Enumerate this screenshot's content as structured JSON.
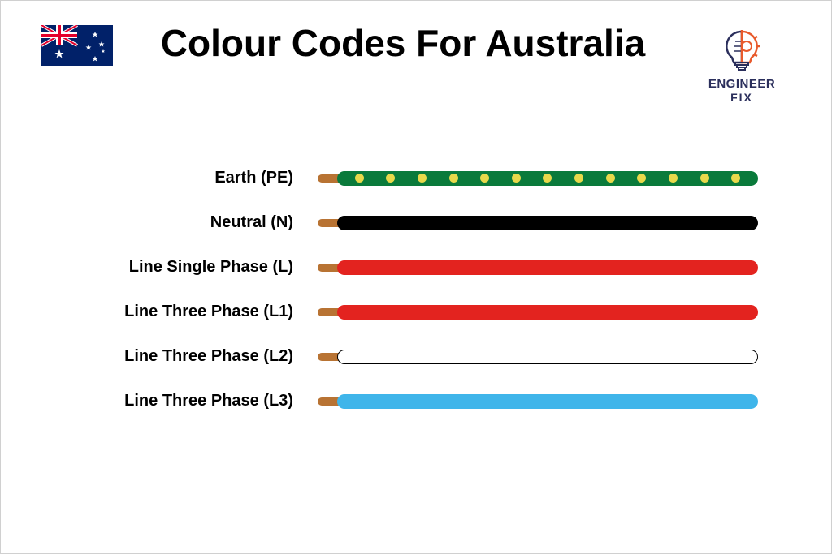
{
  "title": "Colour Codes For Australia",
  "logo": {
    "line1": "ENGINEER",
    "line2": "FIX",
    "color": "#2b2f5c",
    "accent": "#e85a2c"
  },
  "flag": {
    "bg": "#012169",
    "red": "#e4002b",
    "white": "#ffffff"
  },
  "copper_color": "#b87333",
  "wire_height": 18,
  "border_color": "#000000",
  "wires": [
    {
      "label": "Earth (PE)",
      "fill": "#0a7a3b",
      "border": false,
      "dots": true,
      "dot_color": "#e8d94b",
      "dot_count": 13
    },
    {
      "label": "Neutral (N)",
      "fill": "#000000",
      "border": false,
      "dots": false
    },
    {
      "label": "Line Single Phase (L)",
      "fill": "#e3231f",
      "border": false,
      "dots": false
    },
    {
      "label": "Line Three Phase (L1)",
      "fill": "#e3231f",
      "border": false,
      "dots": false
    },
    {
      "label": "Line Three Phase (L2)",
      "fill": "#ffffff",
      "border": true,
      "dots": false
    },
    {
      "label": "Line Three Phase (L3)",
      "fill": "#3fb5ea",
      "border": false,
      "dots": false
    }
  ]
}
